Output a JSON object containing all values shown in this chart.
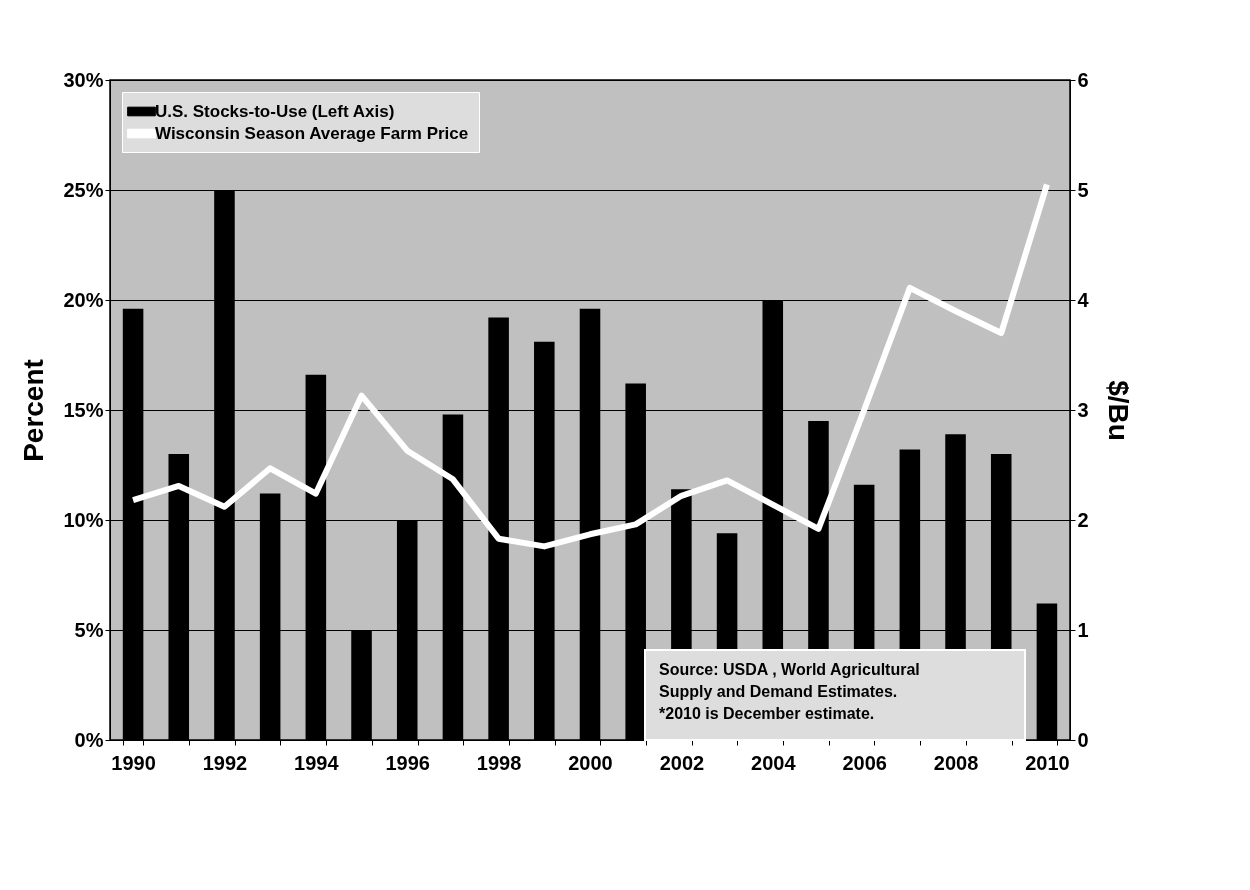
{
  "chart_data": {
    "type": "bar",
    "categories": [
      "1990",
      null,
      "1992",
      null,
      "1994",
      null,
      "1996",
      null,
      "1998",
      null,
      "2000",
      null,
      "2002",
      null,
      "2004",
      null,
      "2006",
      null,
      "2008",
      null,
      "2010"
    ],
    "series": [
      {
        "name": "U.S. Stocks-to-Use (Left Axis)",
        "type": "bar",
        "color": "#000000",
        "values": [
          19.6,
          13.0,
          25.0,
          11.2,
          16.6,
          5.0,
          10.0,
          14.8,
          19.2,
          18.1,
          19.6,
          16.2,
          11.4,
          9.4,
          20.0,
          14.5,
          11.6,
          13.2,
          13.9,
          13.0,
          6.2
        ]
      },
      {
        "name": "Wisconsin Season Average Farm Price",
        "type": "line",
        "axis": "y2",
        "color": "#ffffff",
        "values": [
          2.18,
          2.31,
          2.12,
          2.47,
          2.24,
          3.13,
          2.63,
          2.37,
          1.83,
          1.76,
          1.87,
          1.96,
          2.22,
          2.36,
          2.14,
          1.92,
          3.0,
          4.11,
          3.9,
          3.7,
          5.05
        ]
      }
    ],
    "ylabel": "Percent",
    "y2label": "$/Bu",
    "ylim": [
      0,
      30
    ],
    "yticks": [
      {
        "value": 0,
        "label": "0%"
      },
      {
        "value": 5,
        "label": "5%"
      },
      {
        "value": 10,
        "label": "10%"
      },
      {
        "value": 15,
        "label": "15%"
      },
      {
        "value": 20,
        "label": "20%"
      },
      {
        "value": 25,
        "label": "25%"
      },
      {
        "value": 30,
        "label": "30%"
      }
    ],
    "y2lim": [
      0,
      6
    ],
    "y2ticks": [
      0,
      1,
      2,
      3,
      4,
      5,
      6
    ],
    "grid": "y",
    "legend": "top left",
    "annotations": [
      "Source:  USDA , World Agricultural Supply and Demand Estimates.",
      "*2010 is December estimate."
    ]
  }
}
